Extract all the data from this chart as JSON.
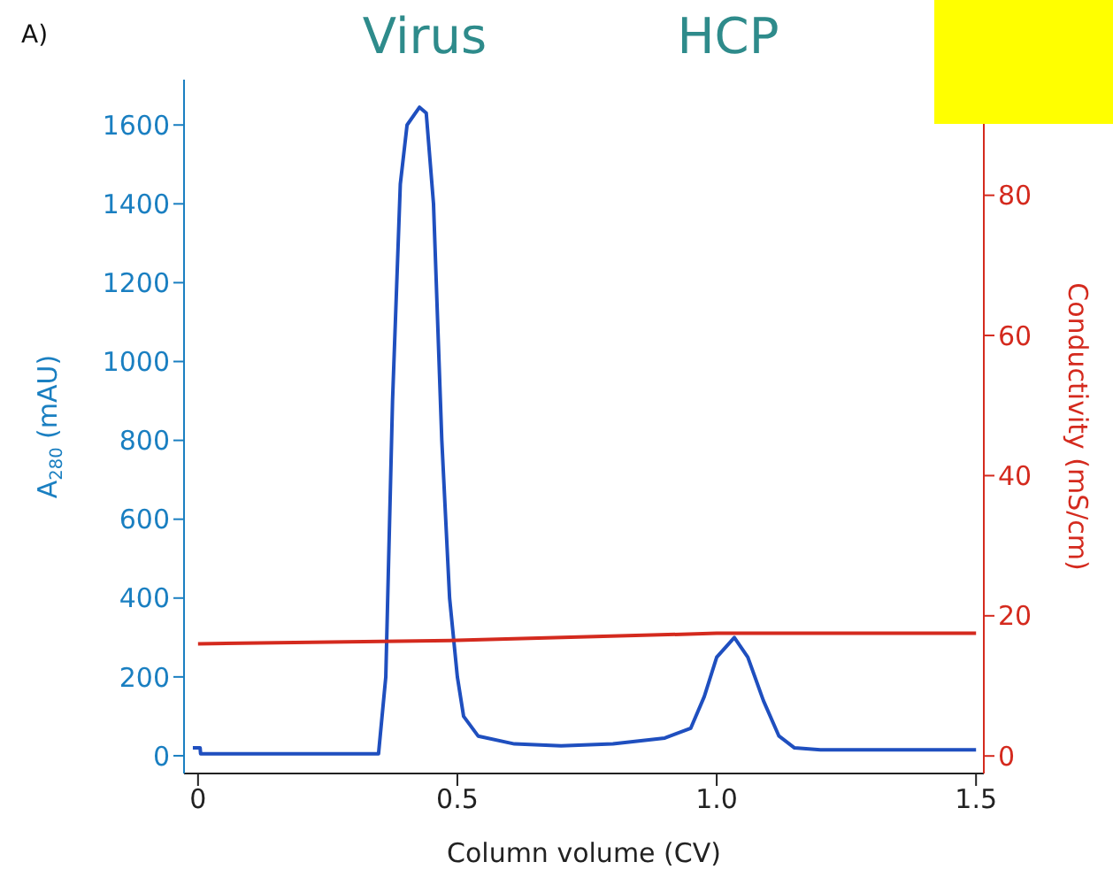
{
  "chart_data": {
    "type": "line",
    "xlabel": "Column volume (CV)",
    "ylabel": "A$_{280}$ (mAU)",
    "y2label": "Conductivity (mS/cm)",
    "annotations": [
      "A)",
      "Virus",
      "HCP"
    ],
    "xlim": [
      -0.027,
      1.515
    ],
    "xticks": [
      0,
      0.5,
      {
        "value": 1,
        "label": "1.0"
      },
      1.5
    ],
    "ylim": [
      -45,
      1715
    ],
    "yticks": [
      0,
      200,
      400,
      600,
      800,
      1000,
      1200,
      1400,
      1600
    ],
    "y2lim": [
      -2.5,
      96.5
    ],
    "y2ticks": [
      0,
      20,
      40,
      60,
      80
    ],
    "marker": "none",
    "line_style": "solid",
    "series": [
      {
        "color": "#1f4fbf",
        "x": [
          -0.01,
          0.004,
          0.005,
          0.1,
          0.2,
          0.3,
          0.348,
          0.362,
          0.375,
          0.39,
          0.403,
          0.427,
          0.44,
          0.454,
          0.47,
          0.485,
          0.5,
          0.512,
          0.54,
          0.61,
          0.7,
          0.8,
          0.9,
          0.95,
          0.976,
          1.0,
          1.034,
          1.06,
          1.09,
          1.12,
          1.15,
          1.2,
          1.3,
          1.4,
          1.5
        ],
        "values": [
          20,
          20,
          5,
          5,
          5,
          5,
          5,
          200,
          900,
          1450,
          1600,
          1645,
          1630,
          1400,
          800,
          400,
          200,
          100,
          50,
          30,
          25,
          30,
          45,
          70,
          150,
          250,
          300,
          250,
          140,
          50,
          20,
          15,
          15,
          15,
          15
        ]
      },
      {
        "color": "#d42a1e",
        "axis": "y2",
        "x": [
          0,
          0.5,
          1.0,
          1.1,
          1.5
        ],
        "values": [
          16,
          16.5,
          17.5,
          17.5,
          17.5
        ]
      }
    ]
  }
}
